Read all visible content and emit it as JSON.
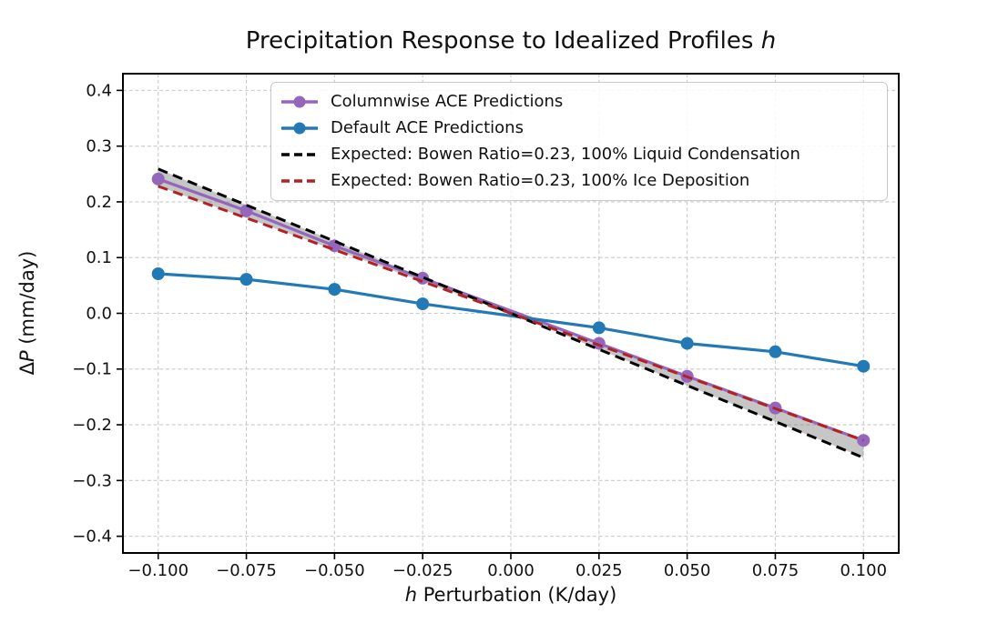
{
  "figure": {
    "title_prefix": "Precipitation Response to Idealized Profiles ",
    "title_italic": "h",
    "xlabel_italic": "h",
    "xlabel_rest": " Perturbation (K/day)",
    "ylabel_delta": "Δ",
    "ylabel_italic": "P",
    "ylabel_rest": " (mm/day)",
    "background_color": "#ffffff"
  },
  "chart_data": {
    "type": "line",
    "title": "Precipitation Response to Idealized Profiles h",
    "xlabel": "h Perturbation (K/day)",
    "ylabel": "ΔP (mm/day)",
    "xlim": [
      -0.11,
      0.11
    ],
    "ylim": [
      -0.43,
      0.43
    ],
    "grid": true,
    "legend_position": "upper center inside",
    "xticks": {
      "values": [
        -0.1,
        -0.075,
        -0.05,
        -0.025,
        0.0,
        0.025,
        0.05,
        0.075,
        0.1
      ],
      "labels": [
        "−0.100",
        "−0.075",
        "−0.050",
        "−0.025",
        "0.000",
        "0.025",
        "0.050",
        "0.075",
        "0.100"
      ]
    },
    "yticks": {
      "values": [
        0.4,
        0.3,
        0.2,
        0.1,
        0.0,
        -0.1,
        -0.2,
        -0.3,
        -0.4
      ],
      "labels": [
        "0.4",
        "0.3",
        "0.2",
        "0.1",
        "0.0",
        "−0.1",
        "−0.2",
        "−0.3",
        "−0.4"
      ]
    },
    "series": [
      {
        "name": "Columnwise ACE Predictions",
        "color": "#9467bd",
        "style": "solid",
        "marker": "circle",
        "x": [
          -0.1,
          -0.075,
          -0.05,
          -0.025,
          0.025,
          0.05,
          0.075,
          0.1
        ],
        "y": [
          0.241,
          0.184,
          0.121,
          0.063,
          -0.054,
          -0.113,
          -0.17,
          -0.228
        ]
      },
      {
        "name": "Default ACE Predictions",
        "color": "#2279b5",
        "style": "solid",
        "marker": "circle",
        "x": [
          -0.1,
          -0.075,
          -0.05,
          -0.025,
          0.025,
          0.05,
          0.075,
          0.1
        ],
        "y": [
          0.071,
          0.061,
          0.043,
          0.017,
          -0.026,
          -0.054,
          -0.069,
          -0.095
        ]
      },
      {
        "name": "Expected: Bowen Ratio=0.23, 100% Liquid Condensation",
        "color": "#000000",
        "style": "dashed",
        "marker": "none",
        "x": [
          -0.1,
          0.1
        ],
        "y": [
          0.259,
          -0.259
        ]
      },
      {
        "name": "Expected: Bowen Ratio=0.23, 100% Ice Deposition",
        "color": "#b22222",
        "style": "dashed",
        "marker": "none",
        "x": [
          -0.1,
          0.1
        ],
        "y": [
          0.228,
          -0.228
        ]
      }
    ],
    "shaded_band": {
      "between_series": [
        2,
        3
      ],
      "color": "#787878",
      "opacity": 0.42
    },
    "grid_color": "#c9c9c9",
    "spine_color": "#000000"
  }
}
